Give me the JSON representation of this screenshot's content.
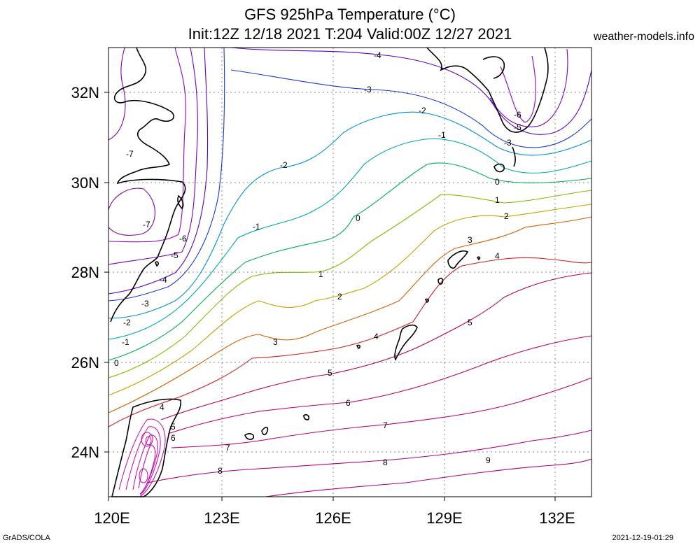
{
  "title": {
    "line1": "GFS 925hPa Temperature (°C)",
    "line2": "Init:12Z 12/18 2021 T:204 Valid:00Z 12/27 2021"
  },
  "credit": "weather-models.info",
  "footer": {
    "left": "GrADS/COLA",
    "right": "2021-12-19-01:29"
  },
  "axes": {
    "lon_labels": [
      "120E",
      "123E",
      "126E",
      "129E",
      "132E"
    ],
    "lat_labels": [
      "32N",
      "30N",
      "28N",
      "26N",
      "24N"
    ],
    "lon_range": [
      120,
      133
    ],
    "lat_range": [
      23,
      33
    ],
    "grid": "dotted"
  },
  "contours": [
    {
      "value": -7,
      "label": "-7",
      "color": "#8000b0"
    },
    {
      "value": -6,
      "label": "-6",
      "color": "#9900cc"
    },
    {
      "value": -5,
      "label": "-5",
      "color": "#7a00cc"
    },
    {
      "value": -4,
      "label": "-4",
      "color": "#5a00d0"
    },
    {
      "value": -3,
      "label": "-3",
      "color": "#1a3ad8"
    },
    {
      "value": -2,
      "label": "-2",
      "color": "#0090e0"
    },
    {
      "value": -1,
      "label": "-1",
      "color": "#00a8b0"
    },
    {
      "value": 0,
      "label": "0",
      "color": "#00b050"
    },
    {
      "value": 1,
      "label": "1",
      "color": "#80c000"
    },
    {
      "value": 2,
      "label": "2",
      "color": "#c8a000"
    },
    {
      "value": 3,
      "label": "3",
      "color": "#d86000"
    },
    {
      "value": 4,
      "label": "4",
      "color": "#d02020"
    },
    {
      "value": 5,
      "label": "5",
      "color": "#c00040"
    },
    {
      "value": 6,
      "label": "6",
      "color": "#c00060"
    },
    {
      "value": 7,
      "label": "7",
      "color": "#c00070"
    },
    {
      "value": 8,
      "label": "8",
      "color": "#b80078"
    },
    {
      "value": 9,
      "label": "9",
      "color": "#b00080"
    }
  ]
}
